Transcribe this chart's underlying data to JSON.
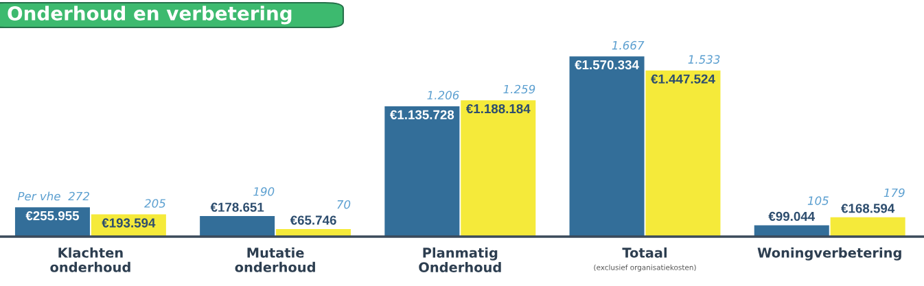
{
  "chart_data": {
    "type": "bar",
    "title": "Onderhoud en verbetering",
    "categories": [
      "Klachten onderhoud",
      "Mutatie onderhoud",
      "Planmatig Onderhoud",
      "Totaal",
      "Woningverbetering"
    ],
    "series": [
      {
        "color": "#336e99",
        "values": [
          255955,
          178651,
          1135728,
          1570334,
          99044
        ],
        "value_labels": [
          "€255.955",
          "€178.651",
          "€1.135.728",
          "€1.570.334",
          "€99.044"
        ]
      },
      {
        "color": "#f5ea3a",
        "values": [
          193594,
          65746,
          1188184,
          1447524,
          168594
        ],
        "value_labels": [
          "€193.594",
          "€65.746",
          "€1.188.184",
          "€1.447.524",
          "€168.594"
        ]
      }
    ],
    "annotations": [
      "Per vhe  272",
      "205",
      "190",
      "70",
      "1.206",
      "1.259",
      "1.667",
      "1.533",
      "105",
      "179",
      "(exclusief organisatiekosten)"
    ]
  }
}
